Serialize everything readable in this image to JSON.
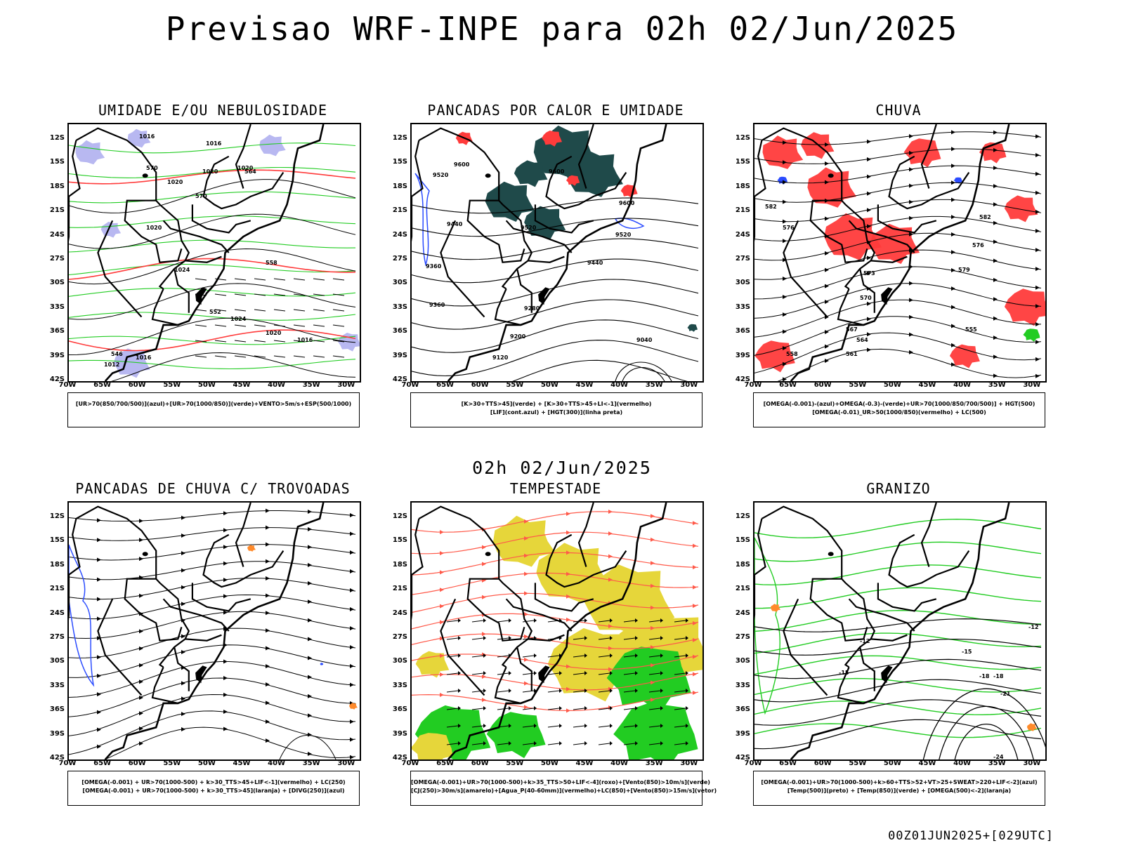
{
  "main_title": "Previsao WRF-INPE  para 02h 02/Jun/2025",
  "mid_title": "02h 02/Jun/2025",
  "footer": "00Z01JUN2025+[029UTC]",
  "lat_labels": [
    "12S",
    "15S",
    "18S",
    "21S",
    "24S",
    "27S",
    "30S",
    "33S",
    "36S",
    "39S",
    "42S"
  ],
  "lon_labels": [
    "70W",
    "65W",
    "60W",
    "55W",
    "50W",
    "45W",
    "40W",
    "35W",
    "30W"
  ],
  "panels": [
    {
      "title": "UMIDADE E/OU NEBULOSIDADE",
      "legend": [
        "[UR>70(850/700/500)](azul)+[UR>70(1000/850)](verde)+VENTO>5m/s+ESP(500/1000)"
      ],
      "contour_labels": [
        "1016",
        "1016",
        "1020",
        "1020",
        "1020",
        "1020",
        "1024",
        "1024",
        "1020",
        "1016",
        "1016",
        "1012",
        "570",
        "570",
        "564",
        "558",
        "552",
        "546"
      ],
      "colors": {
        "blue": "#b0b0f0",
        "green": "#22cc22",
        "red": "#ff3b3b"
      }
    },
    {
      "title": "PANCADAS POR CALOR E UMIDADE",
      "legend": [
        "[K>30+TTS>45](verde) + [K>30+TTS>45+LI<-1](vermelho)",
        "[LIF](cont.azul) + [HGT(300)](linha preta)"
      ],
      "contour_labels": [
        "9600",
        "9520",
        "9600",
        "9440",
        "9520",
        "9520",
        "9360",
        "9440",
        "9360",
        "9280",
        "9200",
        "9120",
        "9040",
        "9600"
      ],
      "colors": {
        "teal": "#1f4a4a",
        "red": "#ff3b3b",
        "blue": "#2b4cff"
      }
    },
    {
      "title": "CHUVA",
      "legend": [
        "[OMEGA(-0.001)-(azul)+OMEGA(-0.3)-(verde)+UR>70(1000/850/700/500)] + HGT(500)",
        "[OMEGA(-0.01)_UR>50(1000/850)(vermelho) + LC(500)"
      ],
      "contour_labels": [
        "582",
        "576",
        "582",
        "576",
        "573",
        "570",
        "567",
        "564",
        "561",
        "555",
        "558",
        "579"
      ],
      "colors": {
        "red": "#ff3b3b",
        "blue": "#2b4cff",
        "green": "#22cc22"
      }
    },
    {
      "title": "PANCADAS DE CHUVA C/ TROVOADAS",
      "legend": [
        "[OMEGA(-0.001) + UR>70(1000-500) + k>30_TTS>45+LIF<-1](vermelho) + LC(250)",
        "[OMEGA(-0.001) + UR>70(1000-500) + k>30_TTS>45](laranja) + [DIVG(250)](azul)"
      ],
      "contour_labels": [],
      "colors": {
        "blue": "#2b4cff",
        "orange": "#ff8a2b"
      }
    },
    {
      "title": "TEMPESTADE",
      "legend": [
        "[OMEGA(-0.001)+UR>70(1000-500)+k>35_TTS>50+LIF<-4](roxo)+[Vento(850)>10m/s](verde)",
        "[CJ(250)>30m/s](amarelo)+[Agua_P(40-60mm)](vermelho)+LC(850)+[Vento(850)>15m/s](vetor)"
      ],
      "contour_labels": [],
      "colors": {
        "yellow": "#e6d63a",
        "green": "#22cc22",
        "red": "#ff5a4a"
      }
    },
    {
      "title": "GRANIZO",
      "legend": [
        "[OMEGA(-0.001)+UR>70(1000-500)+k>60+TTS>52+VT>25+SWEAT>220+LIF<-2](azul)",
        "[Temp(500)](preto) + [Temp(850)](verde) + [OMEGA(500)<-2](laranja)"
      ],
      "contour_labels": [
        "-12",
        "-12",
        "-15",
        "-15",
        "-18",
        "-21",
        "-24",
        "-18"
      ],
      "colors": {
        "green": "#22cc22",
        "orange": "#ff8a2b"
      }
    }
  ]
}
